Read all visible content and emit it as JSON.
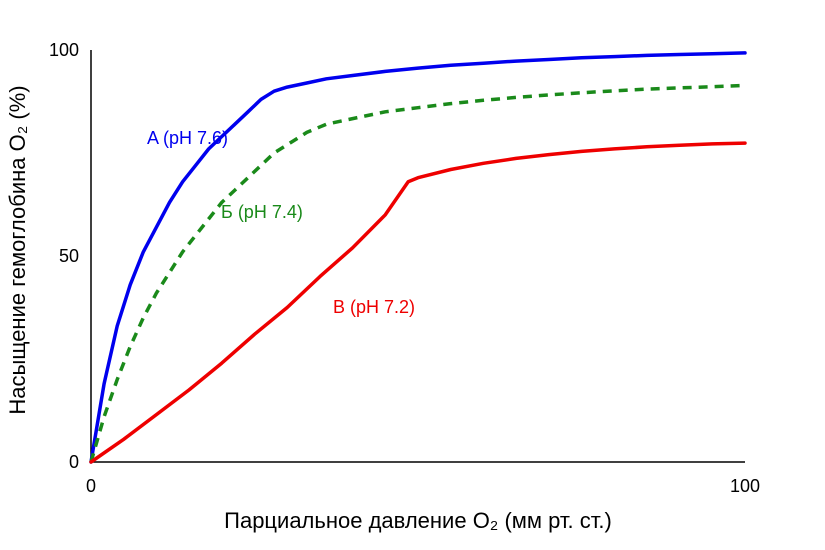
{
  "chart_data": {
    "type": "line",
    "xlabel": "Парциальное давление O₂ (мм рт. ст.)",
    "ylabel": "Насыщение гемоглобина O₂ (%)",
    "xlim": [
      0,
      100
    ],
    "ylim": [
      0,
      100
    ],
    "xticks": [
      "0",
      "100"
    ],
    "yticks": [
      "0",
      "50",
      "100"
    ],
    "grid": false,
    "series": [
      {
        "name": "A (pH 7.6)",
        "color": "#0000ee",
        "dash": "solid",
        "x": [
          0,
          2,
          4,
          6,
          8,
          10,
          12,
          14,
          16,
          18,
          20,
          22,
          24,
          26,
          28,
          30,
          33,
          36,
          40,
          45,
          50,
          55,
          60,
          65,
          70,
          75,
          80,
          85,
          90,
          95,
          100
        ],
        "y": [
          0,
          19,
          33,
          43,
          51,
          57,
          63,
          68,
          72,
          76,
          79,
          82,
          85,
          88,
          90,
          91,
          92,
          93,
          93.8,
          94.8,
          95.6,
          96.3,
          96.8,
          97.3,
          97.7,
          98.1,
          98.4,
          98.7,
          98.9,
          99.1,
          99.3
        ]
      },
      {
        "name": "Б (pH 7.4)",
        "color": "#1a8a1a",
        "dash": "dashed",
        "x": [
          0,
          2,
          4,
          6,
          8,
          10,
          12,
          14,
          16,
          18,
          20,
          22,
          24,
          26,
          28,
          30,
          33,
          36,
          39,
          42,
          45,
          50,
          55,
          60,
          65,
          70,
          75,
          80,
          85,
          90,
          95,
          100
        ],
        "y": [
          0,
          11,
          20,
          28,
          35,
          41,
          46,
          51,
          55,
          59,
          63,
          66,
          69,
          72,
          75,
          77,
          80,
          82,
          83,
          84,
          85,
          86,
          87,
          87.8,
          88.5,
          89.1,
          89.6,
          90.1,
          90.5,
          90.8,
          91.1,
          91.4
        ]
      },
      {
        "name": "В (pH 7.2)",
        "color": "#ee0000",
        "dash": "solid",
        "x": [
          0,
          5,
          10,
          15,
          20,
          25,
          30,
          35,
          40,
          45,
          48.5,
          50,
          55,
          60,
          65,
          70,
          75,
          80,
          85,
          90,
          95,
          100
        ],
        "y": [
          0,
          5.5,
          11.5,
          17.5,
          24,
          31,
          37.5,
          45,
          52,
          60,
          68,
          69,
          71,
          72.5,
          73.7,
          74.6,
          75.4,
          76,
          76.5,
          76.9,
          77.2,
          77.4
        ]
      }
    ]
  }
}
